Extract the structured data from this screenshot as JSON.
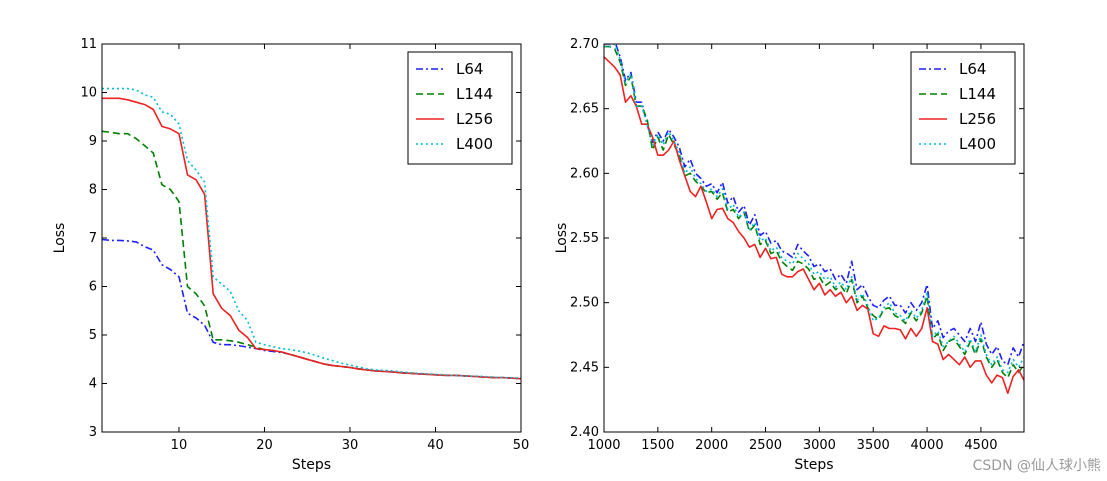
{
  "chart_data": [
    {
      "type": "line",
      "xlabel": "Steps",
      "ylabel": "Loss",
      "xlim": [
        1,
        50
      ],
      "ylim": [
        3,
        11
      ],
      "xticks": [
        10,
        20,
        30,
        40,
        50
      ],
      "yticks": [
        3,
        4,
        5,
        6,
        7,
        8,
        9,
        10,
        11
      ],
      "legend": "top-right",
      "x": [
        1,
        2,
        3,
        4,
        5,
        6,
        7,
        8,
        9,
        10,
        11,
        12,
        13,
        14,
        15,
        16,
        17,
        18,
        19,
        20,
        21,
        22,
        23,
        24,
        25,
        26,
        27,
        28,
        29,
        30,
        31,
        32,
        33,
        34,
        35,
        36,
        37,
        38,
        39,
        40,
        41,
        42,
        43,
        44,
        45,
        46,
        47,
        48,
        49,
        50
      ],
      "series": [
        {
          "name": "L64",
          "color": "#1f1fff",
          "dash": "dashdot",
          "values": [
            6.97,
            6.95,
            6.95,
            6.94,
            6.92,
            6.82,
            6.75,
            6.45,
            6.35,
            6.2,
            5.45,
            5.35,
            5.2,
            4.85,
            4.8,
            4.8,
            4.78,
            4.75,
            4.72,
            4.68,
            4.66,
            4.64,
            4.6,
            4.55,
            4.5,
            4.45,
            4.4,
            4.37,
            4.35,
            4.33,
            4.3,
            4.28,
            4.26,
            4.25,
            4.24,
            4.22,
            4.21,
            4.2,
            4.19,
            4.18,
            4.17,
            4.17,
            4.16,
            4.15,
            4.14,
            4.13,
            4.12,
            4.12,
            4.11,
            4.1
          ]
        },
        {
          "name": "L144",
          "color": "#008000",
          "dash": "dashed",
          "values": [
            9.2,
            9.18,
            9.15,
            9.15,
            9.05,
            8.9,
            8.75,
            8.1,
            8.0,
            7.75,
            6.0,
            5.85,
            5.6,
            4.9,
            4.9,
            4.88,
            4.85,
            4.8,
            4.75,
            4.7,
            4.68,
            4.65,
            4.6,
            4.55,
            4.5,
            4.45,
            4.4,
            4.37,
            4.35,
            4.33,
            4.3,
            4.28,
            4.26,
            4.25,
            4.24,
            4.22,
            4.21,
            4.2,
            4.19,
            4.18,
            4.17,
            4.17,
            4.16,
            4.15,
            4.14,
            4.13,
            4.12,
            4.12,
            4.11,
            4.1
          ]
        },
        {
          "name": "L256",
          "color": "#ee2222",
          "dash": "solid",
          "values": [
            9.88,
            9.88,
            9.88,
            9.85,
            9.8,
            9.75,
            9.65,
            9.3,
            9.25,
            9.15,
            8.3,
            8.2,
            7.9,
            5.85,
            5.55,
            5.4,
            5.1,
            4.95,
            4.72,
            4.7,
            4.68,
            4.65,
            4.6,
            4.55,
            4.5,
            4.45,
            4.4,
            4.37,
            4.35,
            4.33,
            4.3,
            4.28,
            4.26,
            4.25,
            4.24,
            4.22,
            4.21,
            4.2,
            4.19,
            4.18,
            4.17,
            4.17,
            4.16,
            4.15,
            4.14,
            4.13,
            4.12,
            4.12,
            4.11,
            4.1
          ]
        },
        {
          "name": "L400",
          "color": "#00bcd4",
          "dash": "dotted",
          "values": [
            10.08,
            10.08,
            10.08,
            10.08,
            10.05,
            9.95,
            9.9,
            9.6,
            9.55,
            9.35,
            8.6,
            8.4,
            8.15,
            6.2,
            6.05,
            5.9,
            5.5,
            5.3,
            4.85,
            4.8,
            4.76,
            4.72,
            4.7,
            4.67,
            4.63,
            4.58,
            4.52,
            4.47,
            4.42,
            4.38,
            4.34,
            4.3,
            4.28,
            4.27,
            4.26,
            4.24,
            4.22,
            4.21,
            4.2,
            4.19,
            4.18,
            4.17,
            4.16,
            4.15,
            4.15,
            4.14,
            4.13,
            4.12,
            4.12,
            4.11
          ]
        }
      ]
    },
    {
      "type": "line",
      "xlabel": "Steps",
      "ylabel": "Loss",
      "xlim": [
        1000,
        4900
      ],
      "ylim": [
        2.4,
        2.7
      ],
      "xticks": [
        1000,
        1500,
        2000,
        2500,
        3000,
        3500,
        4000,
        4500
      ],
      "yticks": [
        2.4,
        2.45,
        2.5,
        2.55,
        2.6,
        2.65,
        2.7
      ],
      "legend": "top-right",
      "x": [
        1000,
        1050,
        1100,
        1150,
        1200,
        1250,
        1300,
        1350,
        1400,
        1450,
        1500,
        1550,
        1600,
        1650,
        1700,
        1750,
        1800,
        1850,
        1900,
        1950,
        2000,
        2050,
        2100,
        2150,
        2200,
        2250,
        2300,
        2350,
        2400,
        2450,
        2500,
        2550,
        2600,
        2650,
        2700,
        2750,
        2800,
        2850,
        2900,
        2950,
        3000,
        3050,
        3100,
        3150,
        3200,
        3250,
        3300,
        3350,
        3400,
        3450,
        3500,
        3550,
        3600,
        3650,
        3700,
        3750,
        3800,
        3850,
        3900,
        3950,
        4000,
        4050,
        4100,
        4150,
        4200,
        4250,
        4300,
        4350,
        4400,
        4450,
        4500,
        4550,
        4600,
        4650,
        4700,
        4750,
        4800,
        4850,
        4900
      ],
      "series": [
        {
          "name": "L64",
          "color": "#1f1fff",
          "dash": "dashdot",
          "values": [
            2.7,
            2.7,
            2.702,
            2.69,
            2.672,
            2.678,
            2.655,
            2.655,
            2.638,
            2.624,
            2.632,
            2.625,
            2.634,
            2.628,
            2.62,
            2.605,
            2.611,
            2.6,
            2.596,
            2.59,
            2.592,
            2.585,
            2.593,
            2.577,
            2.582,
            2.57,
            2.575,
            2.56,
            2.568,
            2.552,
            2.555,
            2.546,
            2.548,
            2.54,
            2.538,
            2.535,
            2.545,
            2.54,
            2.536,
            2.528,
            2.53,
            2.524,
            2.526,
            2.518,
            2.522,
            2.515,
            2.532,
            2.51,
            2.514,
            2.505,
            2.498,
            2.496,
            2.502,
            2.505,
            2.498,
            2.498,
            2.492,
            2.5,
            2.494,
            2.5,
            2.514,
            2.48,
            2.486,
            2.473,
            2.478,
            2.48,
            2.475,
            2.47,
            2.48,
            2.47,
            2.485,
            2.468,
            2.46,
            2.466,
            2.455,
            2.452,
            2.465,
            2.458,
            2.47
          ]
        },
        {
          "name": "L144",
          "color": "#008000",
          "dash": "dashed",
          "values": [
            2.698,
            2.698,
            2.696,
            2.686,
            2.668,
            2.675,
            2.652,
            2.652,
            2.642,
            2.618,
            2.628,
            2.618,
            2.63,
            2.622,
            2.614,
            2.598,
            2.6,
            2.594,
            2.59,
            2.585,
            2.586,
            2.58,
            2.585,
            2.57,
            2.572,
            2.565,
            2.57,
            2.555,
            2.56,
            2.545,
            2.548,
            2.538,
            2.54,
            2.532,
            2.528,
            2.525,
            2.532,
            2.53,
            2.526,
            2.518,
            2.52,
            2.513,
            2.516,
            2.51,
            2.513,
            2.507,
            2.518,
            2.5,
            2.505,
            2.496,
            2.49,
            2.487,
            2.495,
            2.496,
            2.49,
            2.488,
            2.484,
            2.492,
            2.486,
            2.492,
            2.505,
            2.472,
            2.476,
            2.463,
            2.47,
            2.472,
            2.466,
            2.46,
            2.47,
            2.46,
            2.472,
            2.458,
            2.45,
            2.456,
            2.446,
            2.442,
            2.452,
            2.446,
            2.452
          ]
        },
        {
          "name": "L256",
          "color": "#ee2222",
          "dash": "solid",
          "values": [
            2.69,
            2.686,
            2.682,
            2.676,
            2.655,
            2.66,
            2.652,
            2.638,
            2.638,
            2.628,
            2.614,
            2.614,
            2.618,
            2.625,
            2.61,
            2.598,
            2.586,
            2.582,
            2.59,
            2.578,
            2.565,
            2.572,
            2.573,
            2.565,
            2.562,
            2.555,
            2.55,
            2.543,
            2.545,
            2.535,
            2.542,
            2.534,
            2.535,
            2.522,
            2.52,
            2.52,
            2.524,
            2.526,
            2.518,
            2.51,
            2.515,
            2.506,
            2.51,
            2.505,
            2.508,
            2.5,
            2.505,
            2.494,
            2.498,
            2.495,
            2.476,
            2.474,
            2.482,
            2.48,
            2.48,
            2.479,
            2.472,
            2.48,
            2.474,
            2.48,
            2.496,
            2.47,
            2.468,
            2.456,
            2.46,
            2.456,
            2.452,
            2.458,
            2.45,
            2.455,
            2.455,
            2.444,
            2.438,
            2.444,
            2.442,
            2.43,
            2.443,
            2.448,
            2.44
          ]
        },
        {
          "name": "L400",
          "color": "#00bcd4",
          "dash": "dotted",
          "values": [
            2.698,
            2.698,
            2.7,
            2.688,
            2.67,
            2.677,
            2.652,
            2.652,
            2.638,
            2.622,
            2.63,
            2.622,
            2.632,
            2.625,
            2.616,
            2.6,
            2.605,
            2.596,
            2.592,
            2.586,
            2.588,
            2.582,
            2.588,
            2.572,
            2.576,
            2.566,
            2.57,
            2.556,
            2.562,
            2.548,
            2.55,
            2.54,
            2.543,
            2.535,
            2.532,
            2.53,
            2.538,
            2.534,
            2.53,
            2.522,
            2.524,
            2.518,
            2.52,
            2.512,
            2.516,
            2.51,
            2.52,
            2.502,
            2.507,
            2.498,
            2.486,
            2.488,
            2.496,
            2.5,
            2.492,
            2.49,
            2.486,
            2.494,
            2.488,
            2.494,
            2.508,
            2.474,
            2.478,
            2.466,
            2.47,
            2.474,
            2.468,
            2.462,
            2.472,
            2.462,
            2.475,
            2.46,
            2.452,
            2.458,
            2.448,
            2.446,
            2.456,
            2.45,
            2.458
          ]
        }
      ]
    }
  ],
  "watermark": "CSDN @仙人球小熊"
}
